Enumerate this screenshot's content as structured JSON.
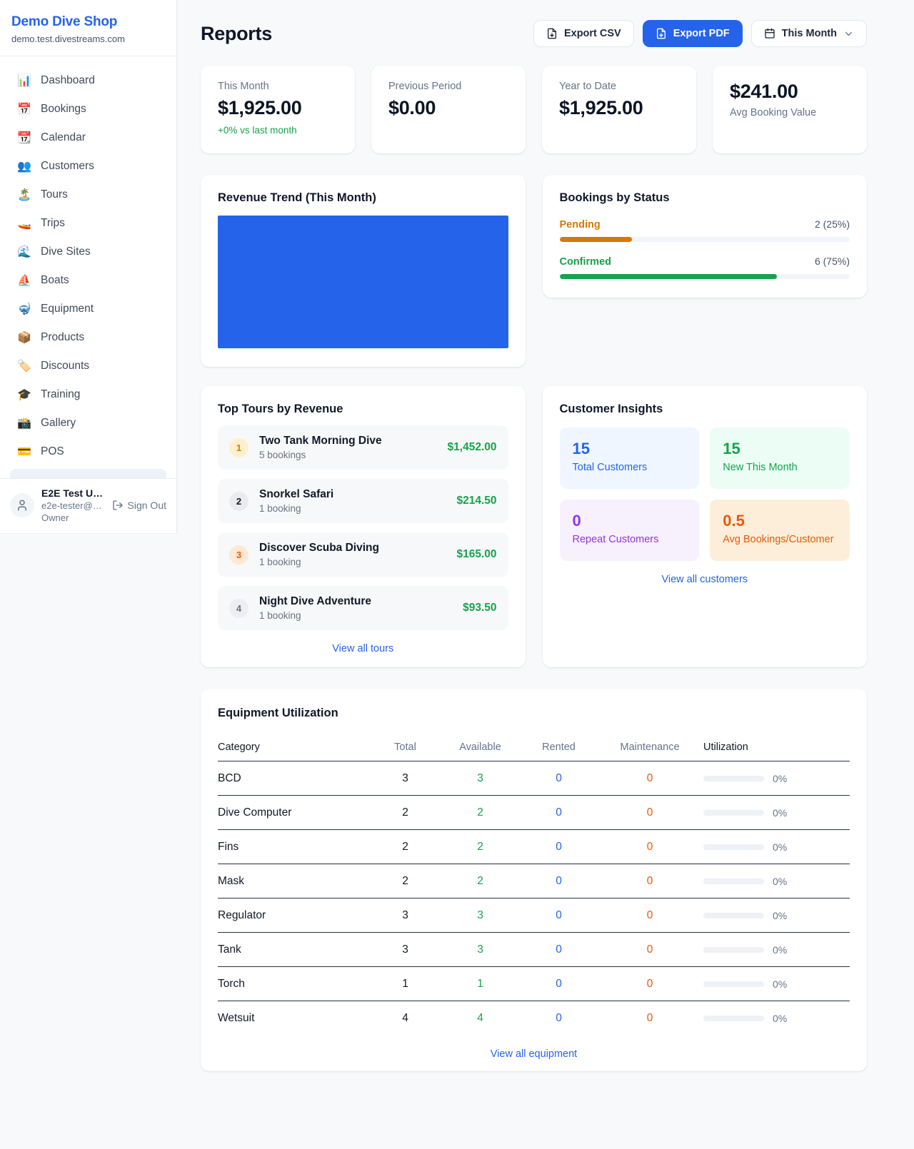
{
  "colors": {
    "accent": "#2563eb",
    "green": "#16a34a",
    "amber": "#d97706",
    "orange": "#ea580c",
    "purple": "#9333ea"
  },
  "sidebar": {
    "shop_name": "Demo Dive Shop",
    "shop_domain": "demo.test.divestreams.com",
    "items": [
      {
        "icon": "📊",
        "label": "Dashboard"
      },
      {
        "icon": "📅",
        "label": "Bookings"
      },
      {
        "icon": "📆",
        "label": "Calendar"
      },
      {
        "icon": "👥",
        "label": "Customers"
      },
      {
        "icon": "🏝️",
        "label": "Tours"
      },
      {
        "icon": "🚤",
        "label": "Trips"
      },
      {
        "icon": "🌊",
        "label": "Dive Sites"
      },
      {
        "icon": "⛵",
        "label": "Boats"
      },
      {
        "icon": "🤿",
        "label": "Equipment"
      },
      {
        "icon": "📦",
        "label": "Products"
      },
      {
        "icon": "🏷️",
        "label": "Discounts"
      },
      {
        "icon": "🎓",
        "label": "Training"
      },
      {
        "icon": "📸",
        "label": "Gallery"
      },
      {
        "icon": "💳",
        "label": "POS"
      }
    ],
    "user": {
      "name": "E2E Test U…",
      "email": "e2e-tester@…",
      "role": "Owner",
      "sign_out_label": "Sign Out"
    }
  },
  "header": {
    "title": "Reports",
    "export_csv_label": "Export CSV",
    "export_pdf_label": "Export PDF",
    "period_label": "This Month"
  },
  "stats": [
    {
      "label": "This Month",
      "value": "$1,925.00",
      "delta": "+0% vs last month",
      "value_first": false
    },
    {
      "label": "Previous Period",
      "value": "$0.00",
      "value_first": false
    },
    {
      "label": "Year to Date",
      "value": "$1,925.00",
      "value_first": false
    },
    {
      "label": "Avg Booking Value",
      "value": "$241.00",
      "value_first": true
    }
  ],
  "revenue_trend": {
    "title": "Revenue Trend (This Month)",
    "fill_color": "#2563eb"
  },
  "bookings_by_status": {
    "title": "Bookings by Status",
    "rows": [
      {
        "label": "Pending",
        "value": "2 (25%)",
        "pct": 25,
        "color": "#d97706"
      },
      {
        "label": "Confirmed",
        "value": "6 (75%)",
        "pct": 75,
        "color": "#16a34a"
      }
    ]
  },
  "top_tours": {
    "title": "Top Tours by Revenue",
    "view_all": "View all tours",
    "rows": [
      {
        "rank": "1",
        "name": "Two Tank Morning Dive",
        "bookings": "5 bookings",
        "revenue": "$1,452.00",
        "badge_bg": "#fdf0cd",
        "badge_color": "#d97706"
      },
      {
        "rank": "2",
        "name": "Snorkel Safari",
        "bookings": "1 booking",
        "revenue": "$214.50",
        "badge_bg": "#e9ebee",
        "badge_color": "#111827"
      },
      {
        "rank": "3",
        "name": "Discover Scuba Diving",
        "bookings": "1 booking",
        "revenue": "$165.00",
        "badge_bg": "#ffe8d4",
        "badge_color": "#ea580c"
      },
      {
        "rank": "4",
        "name": "Night Dive Adventure",
        "bookings": "1 booking",
        "revenue": "$93.50",
        "badge_bg": "#eceef1",
        "badge_color": "#6b7280"
      }
    ]
  },
  "customer_insights": {
    "title": "Customer Insights",
    "view_all": "View all customers",
    "tiles": [
      {
        "value": "15",
        "label": "Total Customers",
        "bg": "#eff6ff",
        "color": "#2563eb"
      },
      {
        "value": "15",
        "label": "New This Month",
        "bg": "#ecfdf5",
        "color": "#16a34a"
      },
      {
        "value": "0",
        "label": "Repeat Customers",
        "bg": "#f7f1fd",
        "color": "#9333ea"
      },
      {
        "value": "0.5",
        "label": "Avg Bookings/Customer",
        "bg": "#fdeeda",
        "color": "#ea580c"
      }
    ]
  },
  "equipment": {
    "title": "Equipment Utilization",
    "view_all": "View all equipment",
    "columns": [
      "Category",
      "Total",
      "Available",
      "Rented",
      "Maintenance",
      "Utilization"
    ],
    "rows": [
      {
        "category": "BCD",
        "total": "3",
        "available": "3",
        "rented": "0",
        "maintenance": "0",
        "utilization": "0%"
      },
      {
        "category": "Dive Computer",
        "total": "2",
        "available": "2",
        "rented": "0",
        "maintenance": "0",
        "utilization": "0%"
      },
      {
        "category": "Fins",
        "total": "2",
        "available": "2",
        "rented": "0",
        "maintenance": "0",
        "utilization": "0%"
      },
      {
        "category": "Mask",
        "total": "2",
        "available": "2",
        "rented": "0",
        "maintenance": "0",
        "utilization": "0%"
      },
      {
        "category": "Regulator",
        "total": "3",
        "available": "3",
        "rented": "0",
        "maintenance": "0",
        "utilization": "0%"
      },
      {
        "category": "Tank",
        "total": "3",
        "available": "3",
        "rented": "0",
        "maintenance": "0",
        "utilization": "0%"
      },
      {
        "category": "Torch",
        "total": "1",
        "available": "1",
        "rented": "0",
        "maintenance": "0",
        "utilization": "0%"
      },
      {
        "category": "Wetsuit",
        "total": "4",
        "available": "4",
        "rented": "0",
        "maintenance": "0",
        "utilization": "0%"
      }
    ]
  }
}
